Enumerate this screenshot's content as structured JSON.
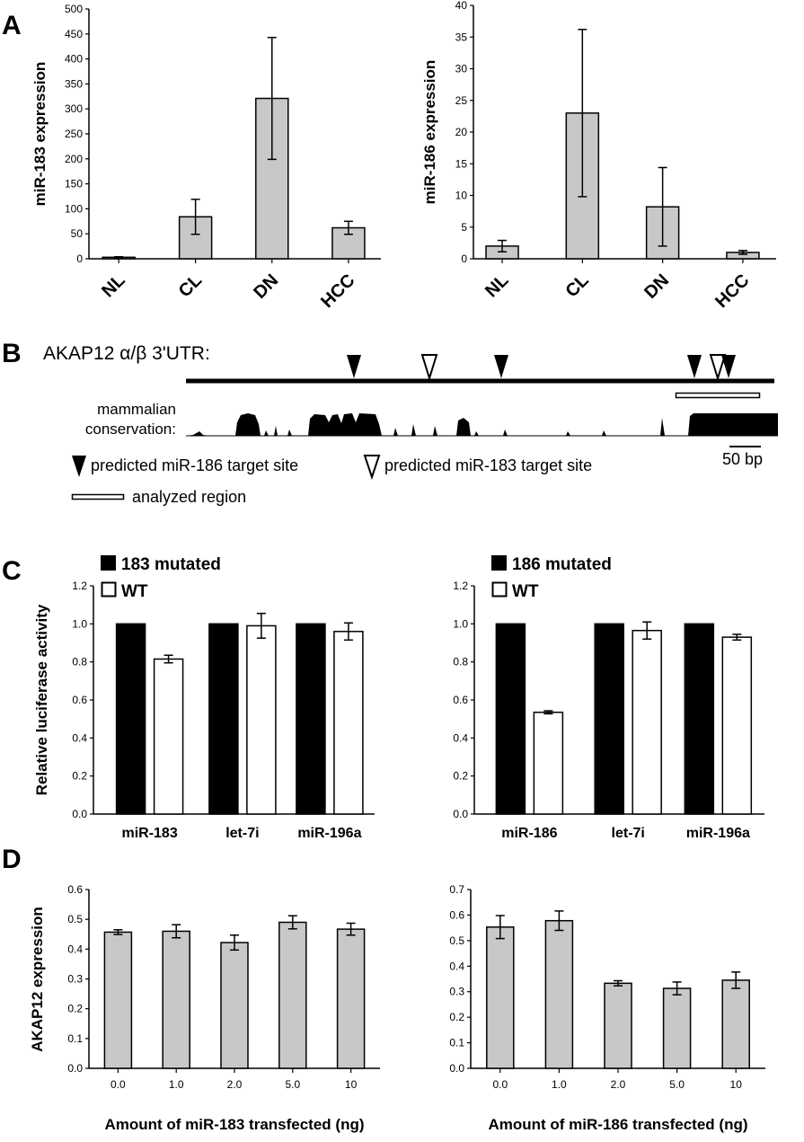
{
  "panel_labels": {
    "a": "A",
    "b": "B",
    "c": "C",
    "d": "D"
  },
  "colors": {
    "gray_bar": "#c8c8c8",
    "black_bar": "#000000",
    "white_bar": "#ffffff"
  },
  "panel_b": {
    "gene_title": "AKAP12 α/β 3'UTR:",
    "conservation_label_1": "mammalian",
    "conservation_label_2": "conservation:",
    "scale_bar_label": "50 bp",
    "legend_mir186": "predicted miR-186 target site",
    "legend_mir183": "predicted miR-183 target site",
    "legend_region": "analyzed region",
    "icons": [
      "filled-triangle-marker",
      "open-triangle-marker",
      "open-rectangle-marker"
    ]
  },
  "chart_data": [
    {
      "id": "A-left",
      "type": "bar",
      "categories": [
        "NL",
        "CL",
        "DN",
        "HCC"
      ],
      "values": [
        3,
        84,
        321,
        62
      ],
      "errors": [
        1,
        35,
        122,
        13
      ],
      "ylabel": "miR-183 expression",
      "ylim": [
        0,
        500
      ],
      "yticks": [
        "0",
        "50",
        "100",
        "150",
        "200",
        "250",
        "300",
        "350",
        "400",
        "450",
        "500"
      ]
    },
    {
      "id": "A-right",
      "type": "bar",
      "categories": [
        "NL",
        "CL",
        "DN",
        "HCC"
      ],
      "values": [
        2,
        23,
        8.2,
        1
      ],
      "errors": [
        0.9,
        13.2,
        6.2,
        0.3
      ],
      "ylabel": "miR-186 expression",
      "ylim": [
        0,
        40
      ],
      "yticks": [
        "0",
        "5",
        "10",
        "15",
        "20",
        "25",
        "30",
        "35",
        "40"
      ]
    },
    {
      "id": "C-left",
      "type": "bar",
      "categories": [
        "miR-183",
        "let-7i",
        "miR-196a"
      ],
      "series": [
        {
          "name": "183 mutated",
          "values": [
            1.0,
            1.0,
            1.0
          ],
          "errors": [
            0,
            0,
            0
          ]
        },
        {
          "name": "WT",
          "values": [
            0.815,
            0.99,
            0.96
          ],
          "errors": [
            0.02,
            0.065,
            0.045
          ]
        }
      ],
      "ylabel": "Relative luciferase activity",
      "ylim": [
        0,
        1.2
      ],
      "yticks": [
        "0.0",
        "0.2",
        "0.4",
        "0.6",
        "0.8",
        "1.0",
        "1.2"
      ]
    },
    {
      "id": "C-right",
      "type": "bar",
      "categories": [
        "miR-186",
        "let-7i",
        "miR-196a"
      ],
      "series": [
        {
          "name": "186 mutated",
          "values": [
            1.0,
            1.0,
            1.0
          ],
          "errors": [
            0,
            0,
            0
          ]
        },
        {
          "name": "WT",
          "values": [
            0.535,
            0.965,
            0.93
          ],
          "errors": [
            0.008,
            0.045,
            0.015
          ]
        }
      ],
      "ylim": [
        0,
        1.2
      ],
      "yticks": [
        "0.0",
        "0.2",
        "0.4",
        "0.6",
        "0.8",
        "1.0",
        "1.2"
      ]
    },
    {
      "id": "D-left",
      "type": "bar",
      "categories": [
        "0.0",
        "1.0",
        "2.0",
        "5.0",
        "10"
      ],
      "values": [
        0.457,
        0.46,
        0.422,
        0.49,
        0.467
      ],
      "errors": [
        0.008,
        0.022,
        0.025,
        0.022,
        0.02
      ],
      "ylabel": "AKAP12 expression",
      "xlabel": "Amount of miR-183 transfected (ng)",
      "ylim": [
        0,
        0.6
      ],
      "yticks": [
        "0.0",
        "0.1",
        "0.2",
        "0.3",
        "0.4",
        "0.5",
        "0.6"
      ]
    },
    {
      "id": "D-right",
      "type": "bar",
      "categories": [
        "0.0",
        "1.0",
        "2.0",
        "5.0",
        "10"
      ],
      "values": [
        0.553,
        0.578,
        0.333,
        0.313,
        0.345
      ],
      "errors": [
        0.045,
        0.038,
        0.01,
        0.025,
        0.032
      ],
      "xlabel": "Amount of miR-186 transfected (ng)",
      "ylim": [
        0,
        0.7
      ],
      "yticks": [
        "0.0",
        "0.1",
        "0.2",
        "0.3",
        "0.4",
        "0.5",
        "0.6",
        "0.7"
      ]
    }
  ]
}
